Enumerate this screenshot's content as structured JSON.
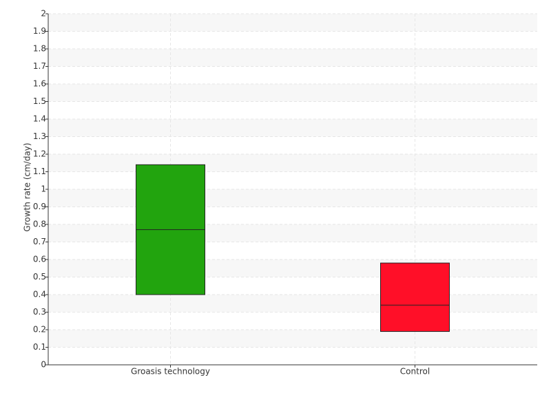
{
  "chart_data": {
    "type": "box",
    "y_label": "Growth rate (cm/day)",
    "categories": [
      "Groasis technology",
      "Control"
    ],
    "q1": [
      0.4,
      0.19
    ],
    "median": [
      0.77,
      0.34
    ],
    "q3": [
      1.14,
      0.58
    ],
    "colors": [
      "#22a40e",
      "#ff0f28"
    ],
    "ylim": [
      0,
      2
    ],
    "yticks": [
      0,
      0.1,
      0.2,
      0.3,
      0.4,
      0.5,
      0.6,
      0.7,
      0.8,
      0.9,
      1,
      1.1,
      1.2,
      1.3,
      1.4,
      1.5,
      1.6,
      1.7,
      1.8,
      1.9,
      2
    ],
    "grid": true
  }
}
